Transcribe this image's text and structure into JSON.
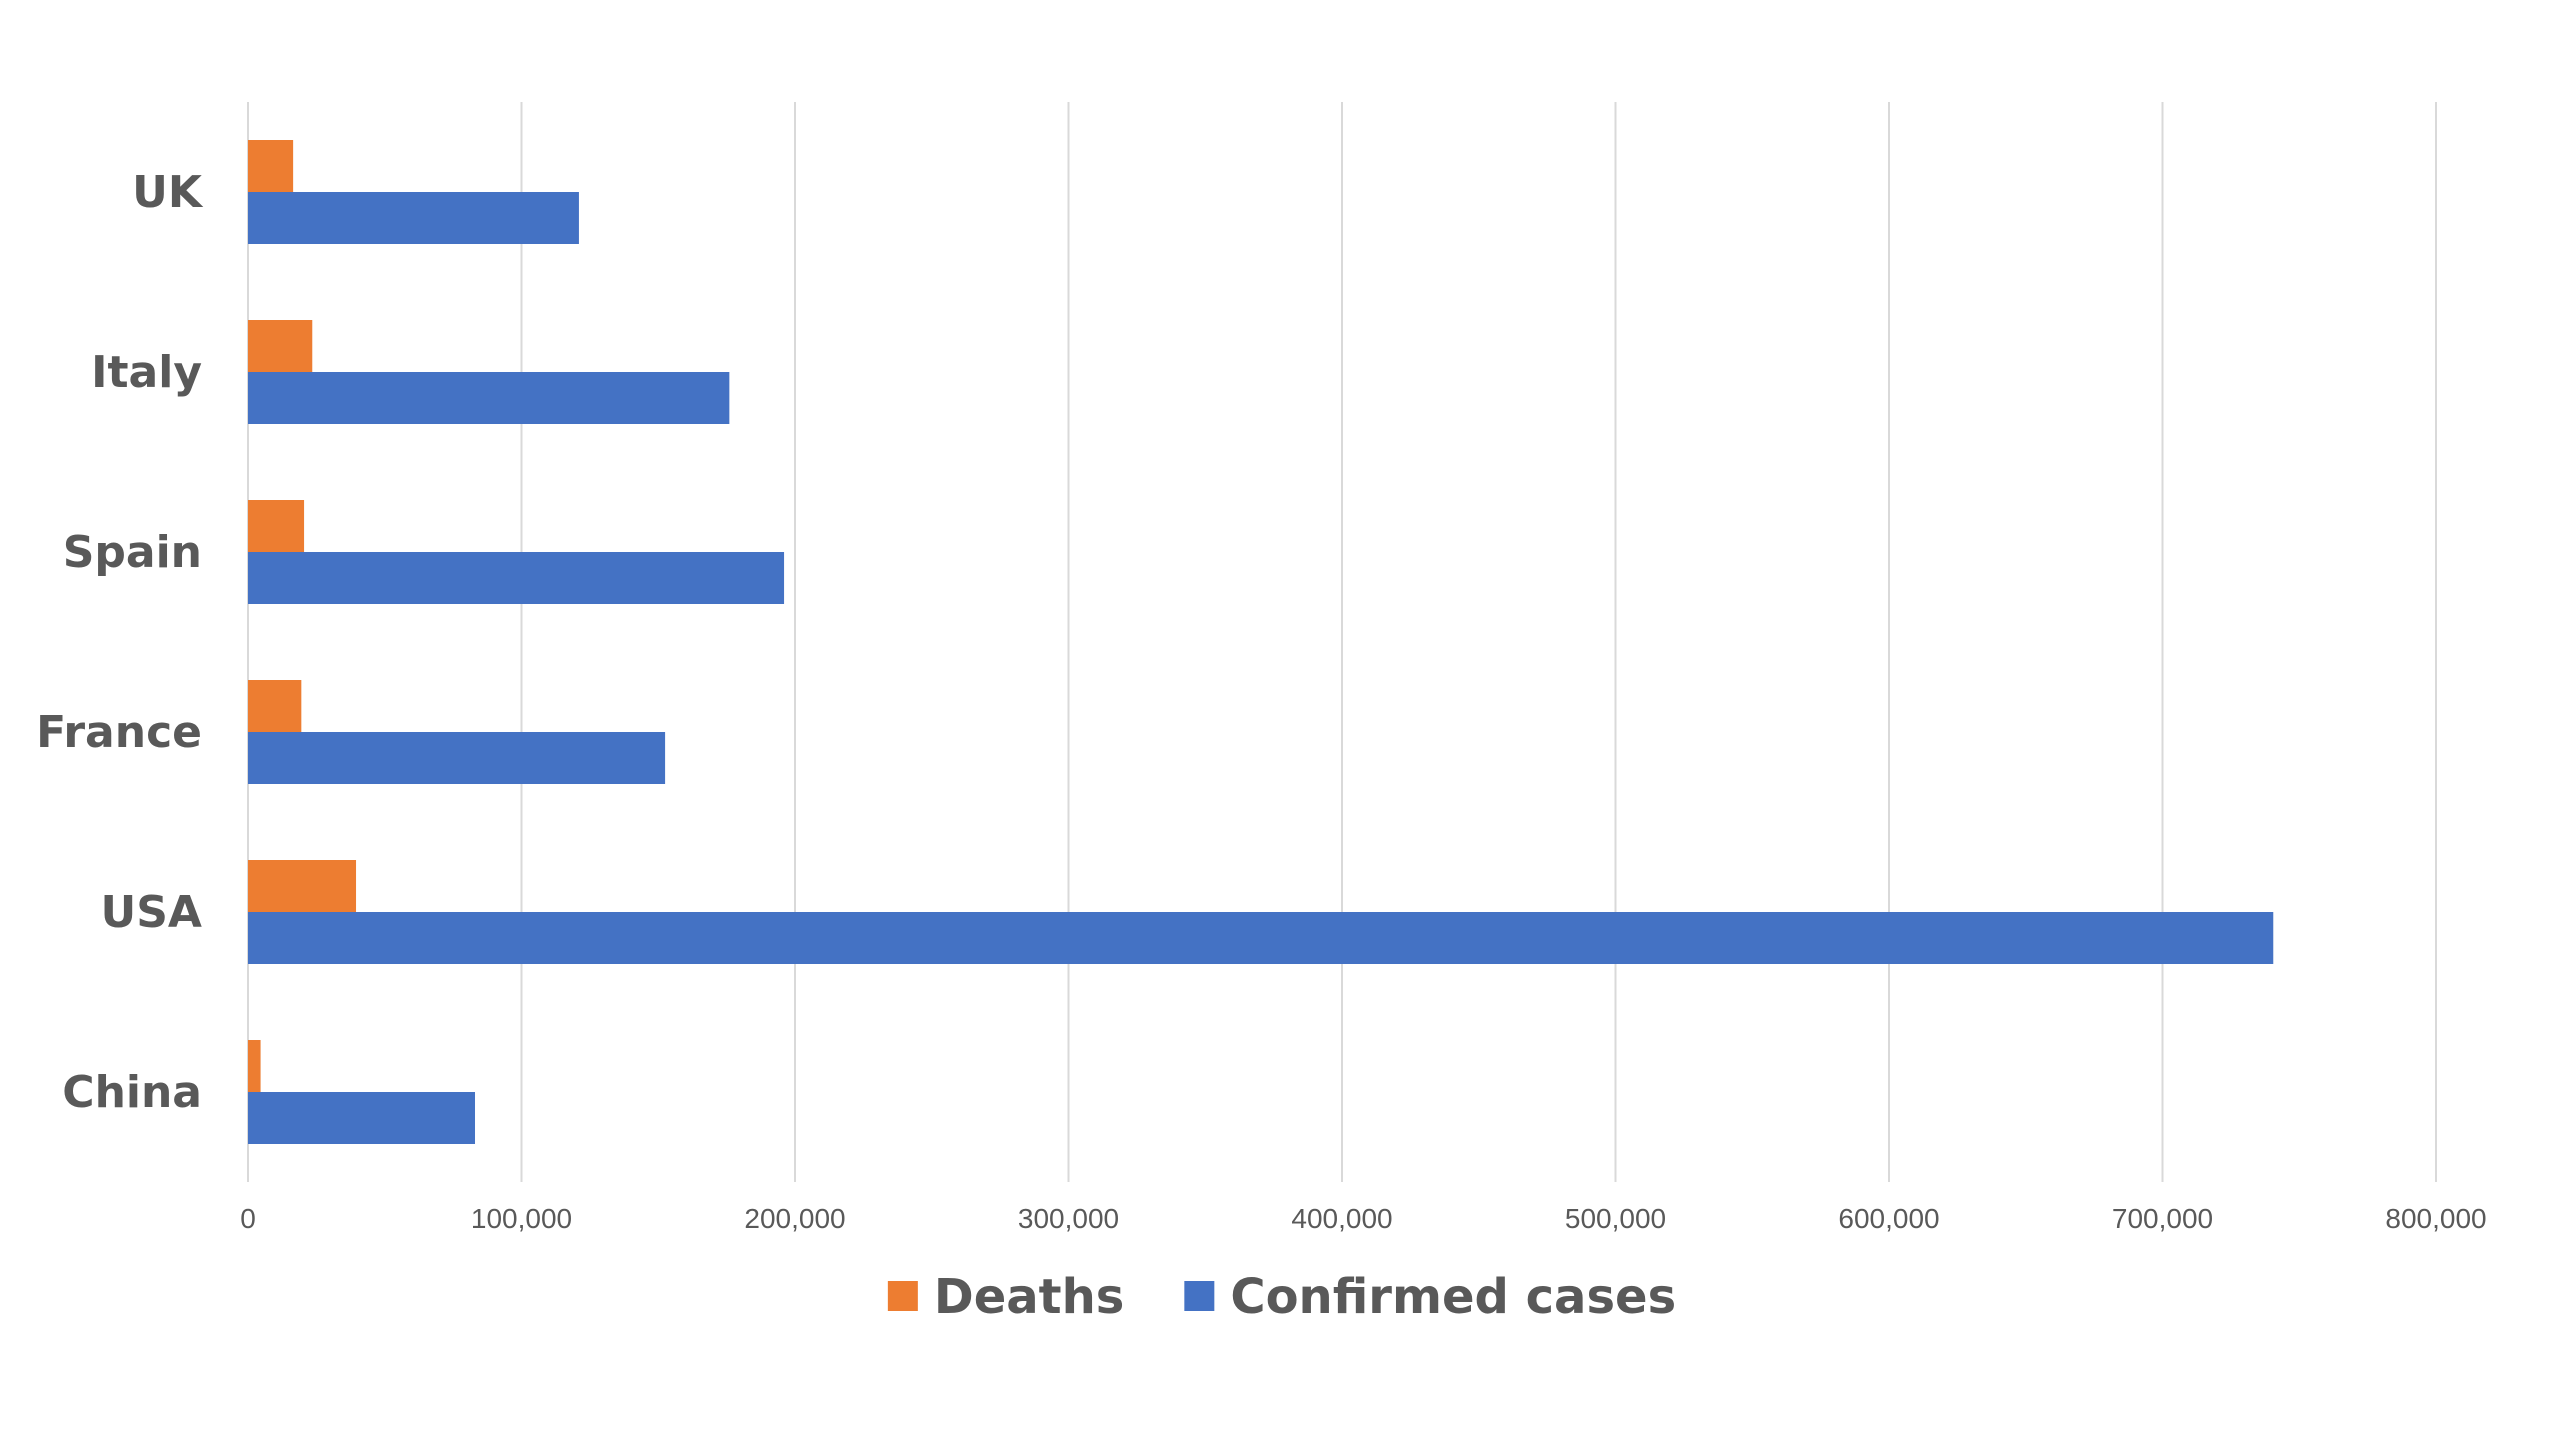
{
  "chart_data": {
    "type": "bar",
    "orientation": "horizontal",
    "categories": [
      "UK",
      "Italy",
      "Spain",
      "France",
      "USA",
      "China"
    ],
    "series": [
      {
        "name": "Deaths",
        "color": "#ED7D31",
        "values": [
          16500,
          23500,
          20500,
          19500,
          39500,
          4600
        ]
      },
      {
        "name": "Confirmed cases",
        "color": "#4472C4",
        "values": [
          121000,
          176000,
          196000,
          152500,
          740500,
          83000
        ]
      }
    ],
    "xlim": [
      0,
      800000
    ],
    "xticks": [
      0,
      100000,
      200000,
      300000,
      400000,
      500000,
      600000,
      700000,
      800000
    ],
    "xtick_labels": [
      "0",
      "100,000",
      "200,000",
      "300,000",
      "400,000",
      "500,000",
      "600,000",
      "700,000",
      "800,000"
    ],
    "title": "",
    "xlabel": "",
    "ylabel": "",
    "grid": true,
    "legend_position": "bottom"
  }
}
